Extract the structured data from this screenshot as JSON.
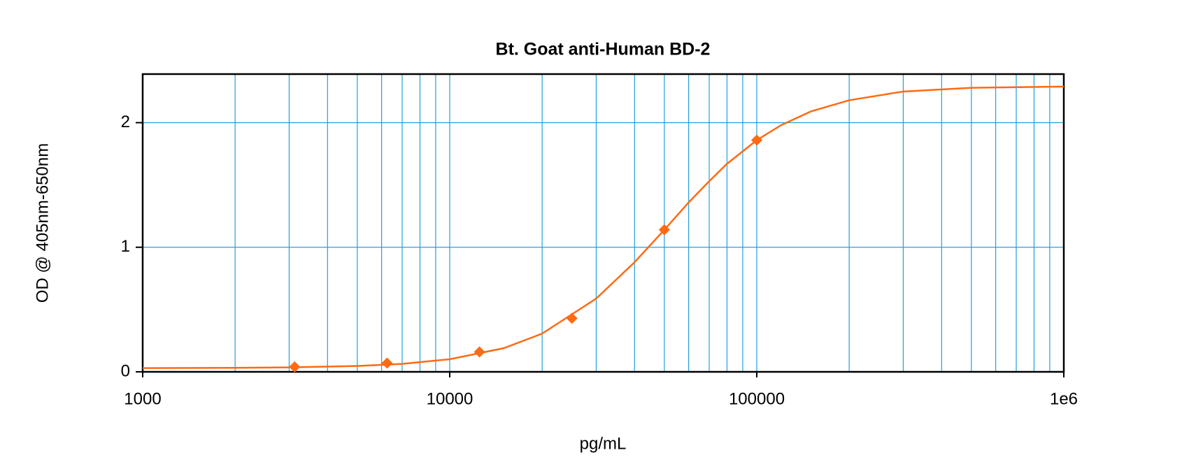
{
  "chart_data": {
    "type": "line",
    "title": "Bt. Goat anti-Human BD-2",
    "x_label": "pg/mL",
    "y_label": "OD @ 405nm-650nm",
    "xscale": "log",
    "grid": true,
    "xlim": [
      1000,
      1000000
    ],
    "ylim": [
      0,
      2.39
    ],
    "xticks": [
      1000,
      10000,
      100000,
      {
        "value": 1000000,
        "label": "1e6"
      }
    ],
    "yticks": [
      0,
      1,
      2
    ],
    "series": [
      {
        "style": "line",
        "color": "#ff6a13",
        "x": [
          1000,
          2000,
          3000,
          5000,
          7000,
          10000,
          15000,
          20000,
          30000,
          40000,
          50000,
          60000,
          70000,
          80000,
          100000,
          120000,
          150000,
          200000,
          300000,
          500000,
          1000000
        ],
        "values": [
          0.03,
          0.032,
          0.036,
          0.047,
          0.064,
          0.101,
          0.19,
          0.307,
          0.588,
          0.88,
          1.14,
          1.36,
          1.53,
          1.67,
          1.86,
          1.98,
          2.09,
          2.18,
          2.25,
          2.28,
          2.29
        ]
      },
      {
        "style": "markers",
        "color": "#ff6a13",
        "x": [
          3125,
          6250,
          12500,
          25000,
          50000,
          100000
        ],
        "values": [
          0.04,
          0.07,
          0.16,
          0.43,
          1.14,
          1.86
        ]
      }
    ]
  }
}
